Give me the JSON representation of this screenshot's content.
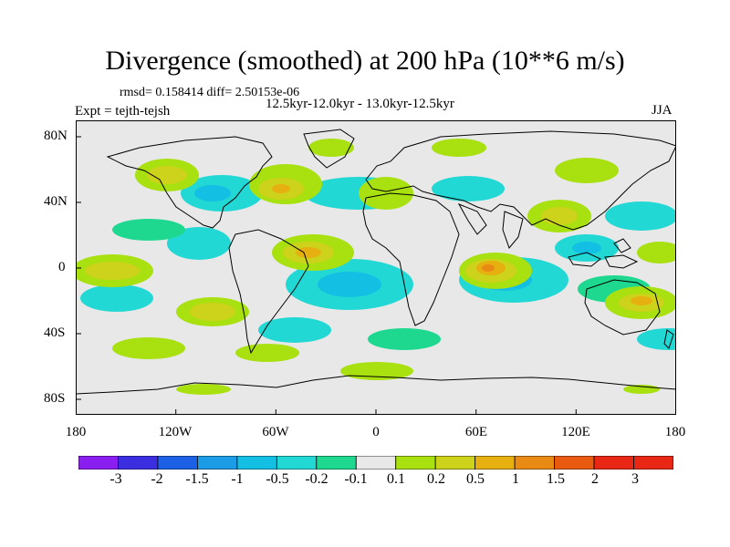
{
  "title": "Divergence (smoothed) at 200 hPa (10**6 m/s)",
  "stats": "rmsd= 0.158414 diff= 2.50153e-06",
  "period": "12.5kyr-12.0kyr - 13.0kyr-12.5kyr",
  "experiment": "Expt = tejth-tejsh",
  "season": "JJA",
  "y_labels": [
    "80N",
    "40N",
    "0",
    "40S",
    "80S"
  ],
  "x_labels": [
    "180",
    "120W",
    "60W",
    "0",
    "60E",
    "120E",
    "180"
  ],
  "colorbar": {
    "labels": [
      "-3",
      "-2",
      "-1.5",
      "-1",
      "-0.5",
      "-0.2",
      "-0.1",
      "0.1",
      "0.2",
      "0.5",
      "1",
      "1.5",
      "2",
      "3"
    ],
    "colors": [
      "#8a1df0",
      "#3a2ee0",
      "#1c60e6",
      "#1c9be6",
      "#14bfe4",
      "#22d8d4",
      "#1ed890",
      "#e8e8e8",
      "#a8e010",
      "#cdd21a",
      "#e6b010",
      "#e88a14",
      "#e85a10",
      "#e82814"
    ]
  }
}
